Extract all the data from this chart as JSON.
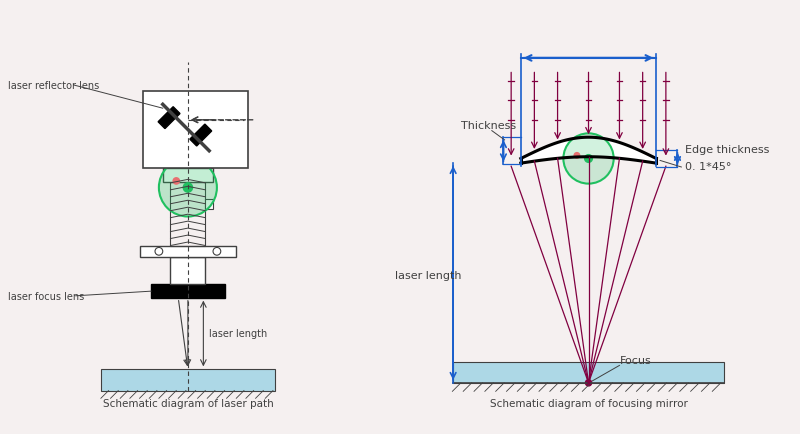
{
  "bg_color": "#f5f0f0",
  "blue": "#1a5fcc",
  "dark_gray": "#404040",
  "light_blue": "#add8e6",
  "green_circle": "#20c060",
  "pink_dot": "#e87070",
  "dark_red": "#800040",
  "title1": "Schematic diagram of laser path",
  "title2": "Schematic diagram of focusing mirror",
  "label_reflector": "laser reflector lens",
  "label_focus": "laser focus lens",
  "label_laser_len1": "laser length",
  "label_laser_len2": "laser length",
  "label_thickness": "Thickness",
  "label_edge": "Edge thickness",
  "label_bevel": "0. 1*45°",
  "label_focus_pt": "Focus"
}
